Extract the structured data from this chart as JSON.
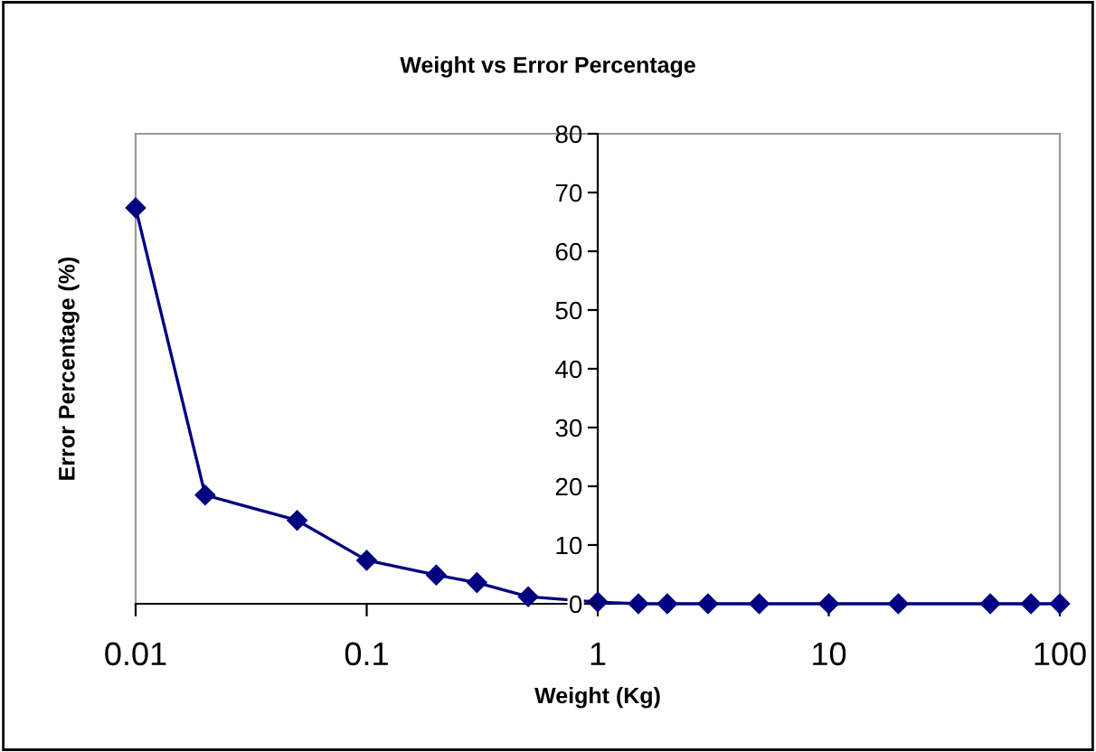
{
  "chart_data": {
    "type": "line",
    "title": "Weight vs Error Percentage",
    "xlabel": "Weight (Kg)",
    "ylabel": "Error Percentage (%)",
    "log": "x",
    "x": [
      0.01,
      0.02,
      0.05,
      0.1,
      0.2,
      0.3,
      0.5,
      1,
      1.5,
      2,
      3,
      5,
      10,
      20,
      50,
      75,
      100
    ],
    "series": [
      {
        "color": "#000080",
        "values": [
          67.4,
          18.5,
          14.2,
          7.4,
          4.9,
          3.6,
          1.2,
          0.3,
          0,
          0,
          0,
          0,
          0,
          0,
          0,
          0,
          0
        ]
      }
    ],
    "xlim": [
      0.01,
      100
    ],
    "xticks": [
      0.01,
      0.1,
      1,
      10,
      100
    ],
    "ylim": [
      0,
      80
    ],
    "yticks": [
      0,
      10,
      20,
      30,
      40,
      50,
      60,
      70,
      80
    ],
    "marker": "diamond",
    "line_style": "solid",
    "grid": false,
    "legend": false
  }
}
